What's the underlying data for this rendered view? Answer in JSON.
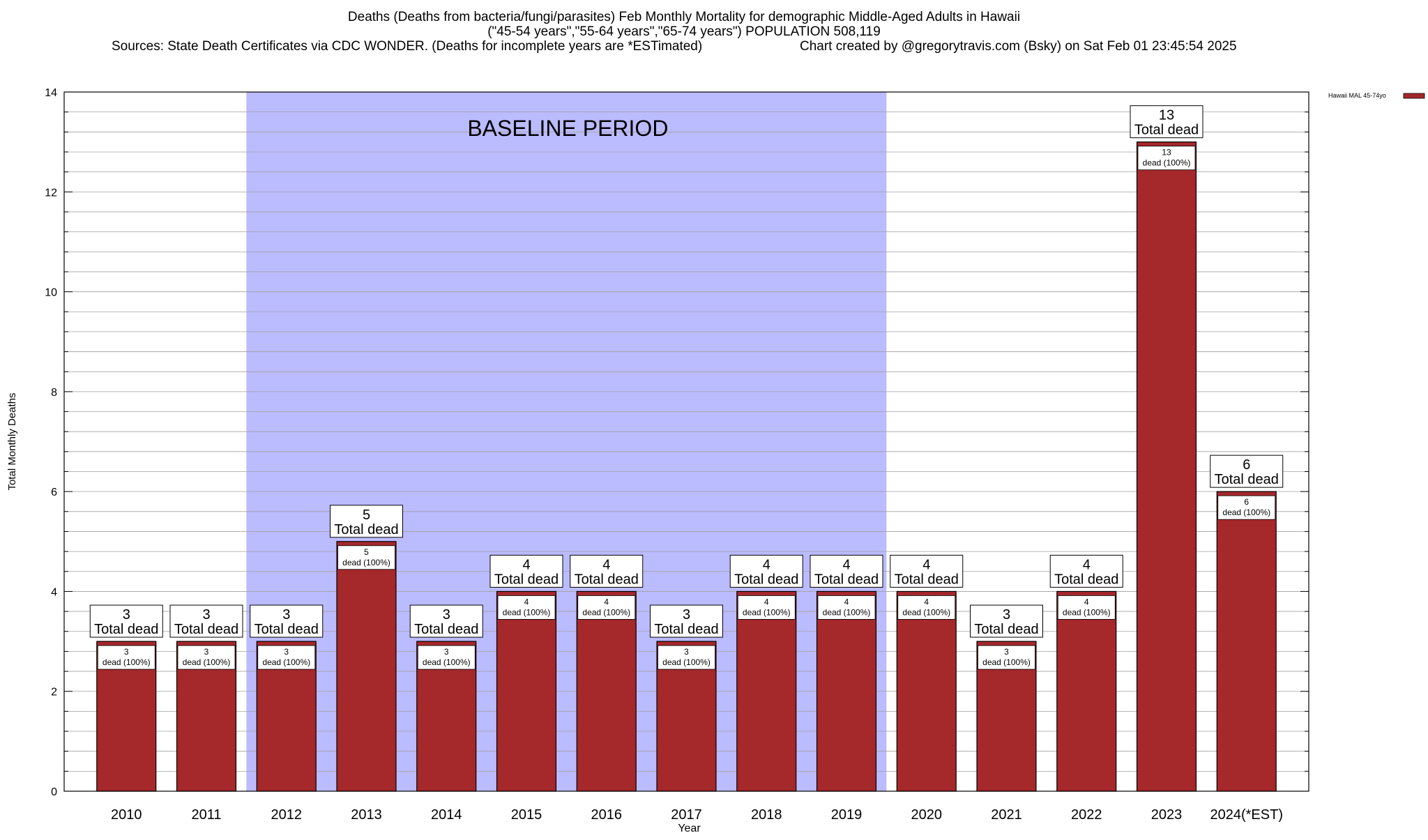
{
  "chart_data": {
    "type": "bar",
    "title_lines": [
      "Deaths (Deaths from bacteria/fungi/parasites) Feb Monthly Mortality for demographic Middle-Aged Adults in Hawaii",
      "(\"45-54 years\",\"55-64 years\",\"65-74 years\") POPULATION 508,119"
    ],
    "sources": "Sources: State Death Certificates via CDC WONDER. (Deaths for incomplete years are *ESTimated)",
    "credit": "Chart created by @gregorytravis.com (Bsky) on Sat Feb 01 23:45:54 2025",
    "xlabel": "Year",
    "ylabel": "Total Monthly Deaths",
    "ylim": [
      0,
      14
    ],
    "y_ticks": [
      0,
      2,
      4,
      6,
      8,
      10,
      12,
      14
    ],
    "y_minor_step": 0.4,
    "grid": true,
    "categories": [
      "2010",
      "2011",
      "2012",
      "2013",
      "2014",
      "2015",
      "2016",
      "2017",
      "2018",
      "2019",
      "2020",
      "2021",
      "2022",
      "2023",
      "2024(*EST)"
    ],
    "series": [
      {
        "name": "Hawaii MAL 45-74yo",
        "color": "#a5282b",
        "values": [
          3,
          3,
          3,
          5,
          3,
          4,
          4,
          3,
          4,
          4,
          4,
          3,
          4,
          13,
          6
        ]
      }
    ],
    "total_label_suffix": "Total dead",
    "inner_label_suffix": "dead (100%)",
    "baseline": {
      "label": "BASELINE PERIOD",
      "from": "2012",
      "to": "2019",
      "color": "#bbbbff"
    },
    "legend_position": "top-right"
  }
}
